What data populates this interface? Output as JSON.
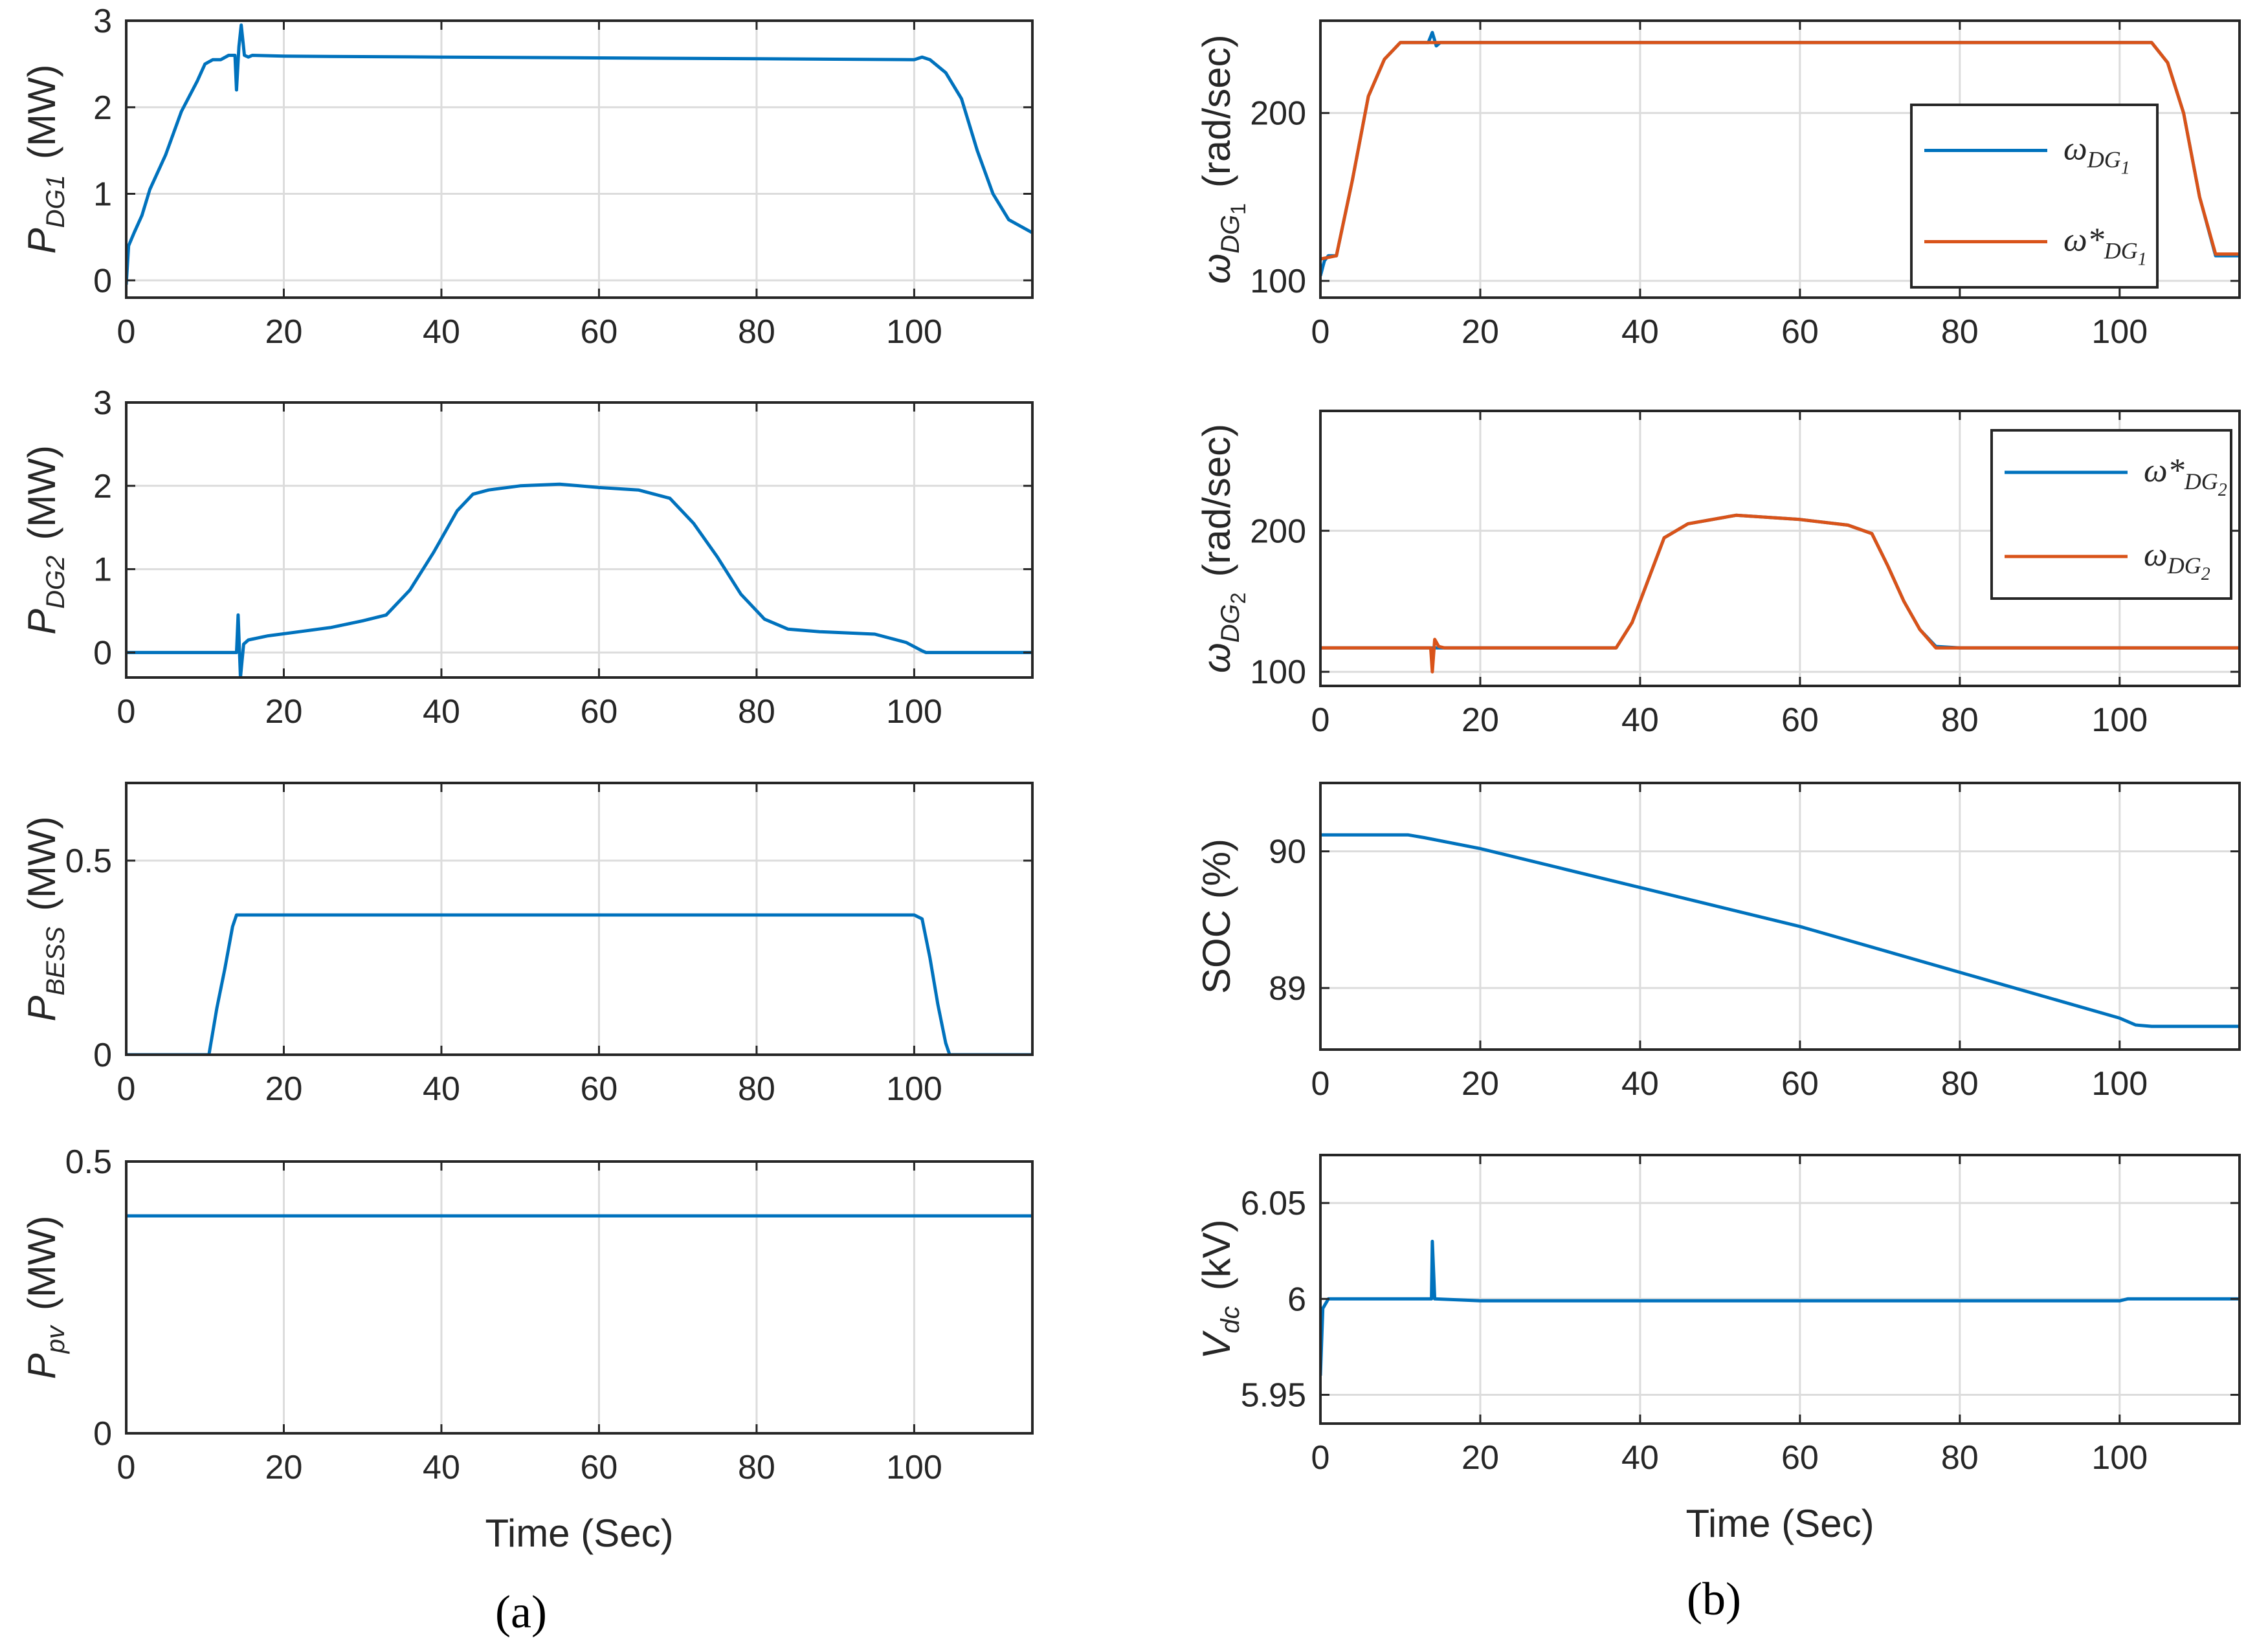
{
  "colors": {
    "series1": "#0072BD",
    "series2": "#D95319",
    "axis": "#262626",
    "grid": "#dcdcdc"
  },
  "panel_labels": [
    "(a)",
    "(b)"
  ],
  "chart_data": [
    {
      "id": "pdg1",
      "type": "line",
      "column": "a",
      "ylabel": {
        "main": "P",
        "sub": "DG1",
        "unit": "(MW)"
      },
      "xlabel": "",
      "xlim": [
        0,
        115
      ],
      "ylim": [
        -0.2,
        3
      ],
      "xticks": [
        0,
        20,
        40,
        60,
        80,
        100
      ],
      "yticks": [
        0,
        1,
        2,
        3
      ],
      "series": [
        {
          "name": "P_DG1",
          "color": "#0072BD",
          "points": [
            [
              0,
              -0.05
            ],
            [
              0.3,
              0.4
            ],
            [
              1,
              0.55
            ],
            [
              2,
              0.75
            ],
            [
              3,
              1.05
            ],
            [
              5,
              1.45
            ],
            [
              7,
              1.95
            ],
            [
              9,
              2.3
            ],
            [
              10,
              2.5
            ],
            [
              11,
              2.55
            ],
            [
              12,
              2.55
            ],
            [
              13,
              2.6
            ],
            [
              13.8,
              2.6
            ],
            [
              14,
              2.2
            ],
            [
              14.3,
              2.7
            ],
            [
              14.6,
              2.95
            ],
            [
              15,
              2.6
            ],
            [
              15.5,
              2.58
            ],
            [
              16,
              2.6
            ],
            [
              20,
              2.59
            ],
            [
              40,
              2.58
            ],
            [
              60,
              2.57
            ],
            [
              80,
              2.56
            ],
            [
              100,
              2.55
            ],
            [
              101,
              2.58
            ],
            [
              102,
              2.55
            ],
            [
              104,
              2.4
            ],
            [
              106,
              2.1
            ],
            [
              108,
              1.5
            ],
            [
              110,
              1.0
            ],
            [
              112,
              0.7
            ],
            [
              115,
              0.55
            ]
          ]
        }
      ]
    },
    {
      "id": "pdg2",
      "type": "line",
      "column": "a",
      "ylabel": {
        "main": "P",
        "sub": "DG2",
        "unit": "(MW)"
      },
      "xlabel": "",
      "xlim": [
        0,
        115
      ],
      "ylim": [
        -0.3,
        3
      ],
      "xticks": [
        0,
        20,
        40,
        60,
        80,
        100
      ],
      "yticks": [
        0,
        1,
        2,
        3
      ],
      "series": [
        {
          "name": "P_DG2",
          "color": "#0072BD",
          "points": [
            [
              0,
              0
            ],
            [
              14,
              0
            ],
            [
              14.2,
              0.45
            ],
            [
              14.5,
              -0.3
            ],
            [
              14.9,
              0.1
            ],
            [
              15.5,
              0.15
            ],
            [
              18,
              0.2
            ],
            [
              22,
              0.25
            ],
            [
              26,
              0.3
            ],
            [
              30,
              0.38
            ],
            [
              33,
              0.45
            ],
            [
              36,
              0.75
            ],
            [
              39,
              1.2
            ],
            [
              42,
              1.7
            ],
            [
              44,
              1.9
            ],
            [
              46,
              1.95
            ],
            [
              50,
              2.0
            ],
            [
              55,
              2.02
            ],
            [
              60,
              1.98
            ],
            [
              65,
              1.95
            ],
            [
              69,
              1.85
            ],
            [
              72,
              1.55
            ],
            [
              75,
              1.15
            ],
            [
              78,
              0.7
            ],
            [
              81,
              0.4
            ],
            [
              84,
              0.28
            ],
            [
              88,
              0.25
            ],
            [
              95,
              0.22
            ],
            [
              99,
              0.12
            ],
            [
              101,
              0.02
            ],
            [
              101.5,
              0
            ],
            [
              115,
              0
            ]
          ]
        }
      ]
    },
    {
      "id": "pbess",
      "type": "line",
      "column": "a",
      "ylabel": {
        "main": "P",
        "sub": "BESS",
        "unit": "(MW)"
      },
      "xlabel": "",
      "xlim": [
        0,
        115
      ],
      "ylim": [
        0,
        0.7
      ],
      "xticks": [
        0,
        20,
        40,
        60,
        80,
        100
      ],
      "yticks": [
        0,
        0.5
      ],
      "series": [
        {
          "name": "P_BESS",
          "color": "#0072BD",
          "points": [
            [
              0,
              0
            ],
            [
              10.5,
              0
            ],
            [
              11.5,
              0.12
            ],
            [
              12.5,
              0.22
            ],
            [
              13.5,
              0.33
            ],
            [
              14,
              0.36
            ],
            [
              20,
              0.36
            ],
            [
              60,
              0.36
            ],
            [
              100,
              0.36
            ],
            [
              101,
              0.35
            ],
            [
              102,
              0.25
            ],
            [
              103,
              0.13
            ],
            [
              104,
              0.03
            ],
            [
              104.5,
              0
            ],
            [
              115,
              0
            ]
          ]
        }
      ]
    },
    {
      "id": "ppv",
      "type": "line",
      "column": "a",
      "ylabel": {
        "main": "P",
        "sub": "pv",
        "unit": "(MW)"
      },
      "xlabel": "Time (Sec)",
      "xlim": [
        0,
        115
      ],
      "ylim": [
        0,
        0.5
      ],
      "xticks": [
        0,
        20,
        40,
        60,
        80,
        100
      ],
      "yticks": [
        0,
        0.5
      ],
      "series": [
        {
          "name": "P_pv",
          "color": "#0072BD",
          "points": [
            [
              0,
              0.4
            ],
            [
              115,
              0.4
            ]
          ]
        }
      ]
    },
    {
      "id": "wdg1",
      "type": "line",
      "column": "b",
      "ylabel": {
        "main": "ω",
        "sub": "DG",
        "subsub": "1",
        "unit": "(rad/sec)"
      },
      "xlabel": "",
      "xlim": [
        0,
        115
      ],
      "ylim": [
        90,
        255
      ],
      "xticks": [
        0,
        20,
        40,
        60,
        80,
        100
      ],
      "yticks": [
        100,
        200
      ],
      "legend": {
        "position": "right",
        "entries": [
          "ω_DG_1",
          "ω*_DG_1"
        ]
      },
      "series": [
        {
          "name": "ω_DG_1",
          "color": "#0072BD",
          "points": [
            [
              0,
              103
            ],
            [
              0.5,
              112
            ],
            [
              1,
              115
            ],
            [
              2,
              115
            ],
            [
              4,
              160
            ],
            [
              6,
              210
            ],
            [
              8,
              232
            ],
            [
              10,
              242
            ],
            [
              13.5,
              242
            ],
            [
              14,
              248
            ],
            [
              14.5,
              240
            ],
            [
              15,
              242
            ],
            [
              20,
              242
            ],
            [
              60,
              242
            ],
            [
              104,
              242
            ],
            [
              106,
              230
            ],
            [
              108,
              200
            ],
            [
              110,
              150
            ],
            [
              112,
              115
            ],
            [
              115,
              115
            ]
          ]
        },
        {
          "name": "ω*_DG_1",
          "color": "#D95319",
          "points": [
            [
              0,
              113
            ],
            [
              2,
              115
            ],
            [
              4,
              160
            ],
            [
              6,
              210
            ],
            [
              8,
              232
            ],
            [
              10,
              242
            ],
            [
              20,
              242
            ],
            [
              60,
              242
            ],
            [
              104,
              242
            ],
            [
              106,
              230
            ],
            [
              108,
              200
            ],
            [
              110,
              150
            ],
            [
              112,
              116
            ],
            [
              115,
              116
            ]
          ]
        }
      ]
    },
    {
      "id": "wdg2",
      "type": "line",
      "column": "b",
      "ylabel": {
        "main": "ω",
        "sub": "DG",
        "subsub": "2",
        "unit": "(rad/sec)"
      },
      "xlabel": "",
      "xlim": [
        0,
        115
      ],
      "ylim": [
        90,
        285
      ],
      "xticks": [
        0,
        20,
        40,
        60,
        80,
        100
      ],
      "yticks": [
        100,
        200
      ],
      "legend": {
        "position": "top-right",
        "entries": [
          "ω*_DG_2",
          "ω_DG_2"
        ]
      },
      "series": [
        {
          "name": "ω*_DG_2",
          "color": "#0072BD",
          "points": [
            [
              0,
              117
            ],
            [
              37,
              117
            ],
            [
              39,
              135
            ],
            [
              41,
              165
            ],
            [
              43,
              195
            ],
            [
              46,
              205
            ],
            [
              52,
              211
            ],
            [
              60,
              208
            ],
            [
              66,
              204
            ],
            [
              69,
              198
            ],
            [
              71,
              175
            ],
            [
              73,
              150
            ],
            [
              75,
              130
            ],
            [
              77,
              118
            ],
            [
              80,
              117
            ],
            [
              115,
              117
            ]
          ]
        },
        {
          "name": "ω_DG_2",
          "color": "#D95319",
          "points": [
            [
              0,
              117
            ],
            [
              13.8,
              117
            ],
            [
              14,
              100
            ],
            [
              14.3,
              123
            ],
            [
              14.8,
              118
            ],
            [
              15.5,
              117
            ],
            [
              37,
              117
            ],
            [
              39,
              135
            ],
            [
              41,
              165
            ],
            [
              43,
              195
            ],
            [
              46,
              205
            ],
            [
              52,
              211
            ],
            [
              60,
              208
            ],
            [
              66,
              204
            ],
            [
              69,
              198
            ],
            [
              71,
              175
            ],
            [
              73,
              150
            ],
            [
              75,
              130
            ],
            [
              77,
              117
            ],
            [
              115,
              117
            ]
          ]
        }
      ]
    },
    {
      "id": "soc",
      "type": "line",
      "column": "b",
      "ylabel": {
        "main": "SOC (%)"
      },
      "xlabel": "",
      "xlim": [
        0,
        115
      ],
      "ylim": [
        88.55,
        90.5
      ],
      "xticks": [
        0,
        20,
        40,
        60,
        80,
        100
      ],
      "yticks": [
        89,
        90
      ],
      "series": [
        {
          "name": "SOC",
          "color": "#0072BD",
          "points": [
            [
              0,
              90.12
            ],
            [
              11,
              90.12
            ],
            [
              13,
              90.1
            ],
            [
              20,
              90.02
            ],
            [
              60,
              89.45
            ],
            [
              100,
              88.78
            ],
            [
              102,
              88.73
            ],
            [
              104,
              88.72
            ],
            [
              115,
              88.72
            ]
          ]
        }
      ]
    },
    {
      "id": "vdc",
      "type": "line",
      "column": "b",
      "ylabel": {
        "main": "V",
        "sub": "dc",
        "unit": "(kV)"
      },
      "xlabel": "Time (Sec)",
      "xlim": [
        0,
        115
      ],
      "ylim": [
        5.935,
        6.075
      ],
      "xticks": [
        0,
        20,
        40,
        60,
        80,
        100
      ],
      "yticks": [
        5.95,
        6,
        6.05
      ],
      "series": [
        {
          "name": "V_dc",
          "color": "#0072BD",
          "points": [
            [
              0,
              5.96
            ],
            [
              0.3,
              5.995
            ],
            [
              1,
              6.0
            ],
            [
              13.9,
              6.0
            ],
            [
              14,
              6.03
            ],
            [
              14.3,
              6.0
            ],
            [
              20,
              5.999
            ],
            [
              40,
              5.999
            ],
            [
              60,
              5.999
            ],
            [
              80,
              5.999
            ],
            [
              100,
              5.999
            ],
            [
              101,
              6.0
            ],
            [
              115,
              6.0
            ]
          ]
        }
      ]
    }
  ]
}
